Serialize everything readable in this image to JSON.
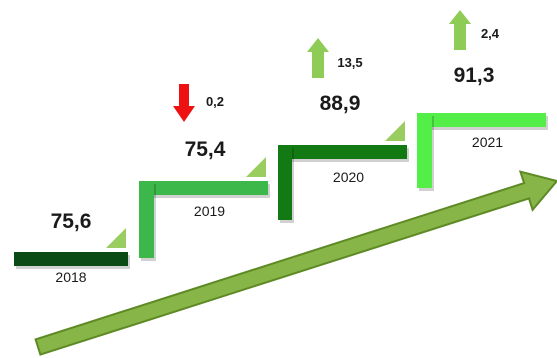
{
  "colors": {
    "step_2018": "#0b4a14",
    "step_2019": "#3cb84a",
    "step_2020": "#137a13",
    "step_2021": "#54ee48",
    "arrow_fill": "#88b548",
    "arrow_stroke": "#5e8a25",
    "up_arrow": "#8fcc55",
    "down_arrow": "#ee1111",
    "corner_triangle": "#9acd5f"
  },
  "chart_data": {
    "type": "step",
    "categories": [
      "2018",
      "2019",
      "2020",
      "2021"
    ],
    "values": [
      75.6,
      75.4,
      88.9,
      91.3
    ],
    "value_labels": [
      "75,6",
      "75,4",
      "88,9",
      "91,3"
    ],
    "changes": [
      null,
      {
        "label": "0,2",
        "direction": "down",
        "icon": "arrow-down-icon"
      },
      {
        "label": "13,5",
        "direction": "up",
        "icon": "arrow-up-icon"
      },
      {
        "label": "2,4",
        "direction": "up",
        "icon": "arrow-up-icon"
      }
    ],
    "trend": {
      "direction": "up",
      "icon": "trend-arrow-icon"
    },
    "title": "",
    "xlabel": "",
    "ylabel": ""
  }
}
